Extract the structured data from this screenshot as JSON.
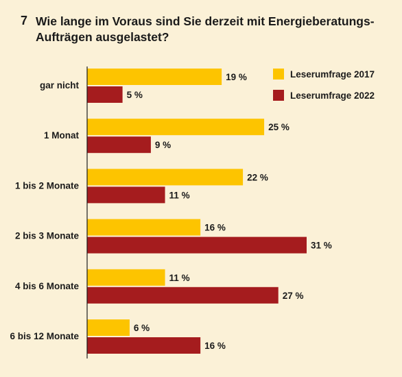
{
  "question_number": "7",
  "chart_data": {
    "type": "bar",
    "orientation": "horizontal",
    "title": "Wie lange im Voraus sind Sie derzeit mit Energieberatungs-Aufträgen ausgelastet?",
    "categories": [
      "gar nicht",
      "1 Monat",
      "1 bis 2 Monate",
      "2 bis 3 Monate",
      "4 bis 6 Monate",
      "6 bis 12 Monate"
    ],
    "unit": "%",
    "series": [
      {
        "name": "Leserumfrage 2017",
        "color": "#fdc400",
        "values": [
          19,
          25,
          22,
          16,
          11,
          6
        ]
      },
      {
        "name": "Leserumfrage 2022",
        "color": "#a51c1e",
        "values": [
          5,
          9,
          11,
          31,
          27,
          16
        ]
      }
    ],
    "xlim": [
      0,
      31
    ],
    "legend_position": "top-right",
    "grid": false
  }
}
